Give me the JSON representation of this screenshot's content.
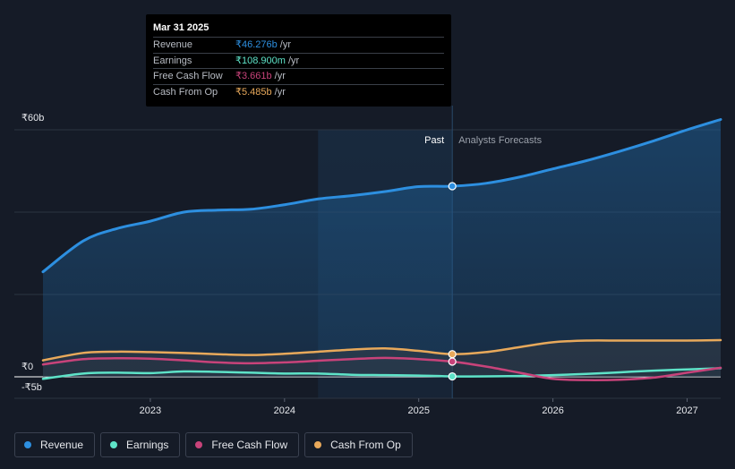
{
  "chart_data": {
    "type": "line",
    "y_unit_prefix": "₹",
    "y_unit_suffix": "b",
    "ylim": [
      -5,
      60
    ],
    "y_ticks": [
      {
        "value": 60,
        "label": "₹60b"
      },
      {
        "value": 0,
        "label": "₹0"
      },
      {
        "value": -5,
        "label": "-₹5b"
      }
    ],
    "x_range": [
      2022.2,
      2027.25
    ],
    "x_ticks": [
      {
        "value": 2023,
        "label": "2023"
      },
      {
        "value": 2024,
        "label": "2024"
      },
      {
        "value": 2025,
        "label": "2025"
      },
      {
        "value": 2026,
        "label": "2026"
      },
      {
        "value": 2027,
        "label": "2027"
      }
    ],
    "past_label": "Past",
    "forecast_label": "Analysts Forecasts",
    "divider_x": 2025.25,
    "highlight_start_x": 2024.25,
    "series": [
      {
        "name": "Revenue",
        "color": "#2d8fe0",
        "fill": true,
        "points": [
          [
            2022.2,
            25.5
          ],
          [
            2022.5,
            33
          ],
          [
            2022.75,
            36
          ],
          [
            2023,
            37.8
          ],
          [
            2023.25,
            40
          ],
          [
            2023.5,
            40.5
          ],
          [
            2023.75,
            40.7
          ],
          [
            2024,
            41.8
          ],
          [
            2024.25,
            43.2
          ],
          [
            2024.5,
            44
          ],
          [
            2024.75,
            45
          ],
          [
            2025,
            46.2
          ],
          [
            2025.25,
            46.3
          ],
          [
            2025.5,
            47
          ],
          [
            2025.75,
            48.5
          ],
          [
            2026,
            50.5
          ],
          [
            2026.25,
            52.5
          ],
          [
            2026.5,
            54.8
          ],
          [
            2026.75,
            57.3
          ],
          [
            2027,
            60
          ],
          [
            2027.25,
            62.5
          ]
        ]
      },
      {
        "name": "Earnings",
        "color": "#5ee3c8",
        "fill": false,
        "points": [
          [
            2022.2,
            -0.5
          ],
          [
            2022.5,
            0.8
          ],
          [
            2022.75,
            1
          ],
          [
            2023,
            0.9
          ],
          [
            2023.25,
            1.3
          ],
          [
            2023.5,
            1.2
          ],
          [
            2023.75,
            1
          ],
          [
            2024,
            0.8
          ],
          [
            2024.25,
            0.8
          ],
          [
            2024.5,
            0.5
          ],
          [
            2024.75,
            0.4
          ],
          [
            2025,
            0.3
          ],
          [
            2025.25,
            0.1
          ],
          [
            2025.5,
            0.1
          ],
          [
            2025.75,
            0.2
          ],
          [
            2026,
            0.4
          ],
          [
            2026.25,
            0.7
          ],
          [
            2026.5,
            1.1
          ],
          [
            2026.75,
            1.5
          ],
          [
            2027,
            1.8
          ],
          [
            2027.25,
            2.1
          ]
        ]
      },
      {
        "name": "Free Cash Flow",
        "color": "#c8437a",
        "fill": false,
        "points": [
          [
            2022.2,
            3
          ],
          [
            2022.5,
            4.3
          ],
          [
            2022.75,
            4.5
          ],
          [
            2023,
            4.4
          ],
          [
            2023.25,
            4
          ],
          [
            2023.5,
            3.5
          ],
          [
            2023.75,
            3.3
          ],
          [
            2024,
            3.5
          ],
          [
            2024.25,
            3.9
          ],
          [
            2024.5,
            4.3
          ],
          [
            2024.75,
            4.6
          ],
          [
            2025,
            4.3
          ],
          [
            2025.25,
            3.7
          ],
          [
            2025.5,
            2.5
          ],
          [
            2025.75,
            1
          ],
          [
            2026,
            -0.5
          ],
          [
            2026.25,
            -0.8
          ],
          [
            2026.5,
            -0.7
          ],
          [
            2026.75,
            -0.2
          ],
          [
            2027,
            1
          ],
          [
            2027.25,
            2.2
          ]
        ]
      },
      {
        "name": "Cash From Op",
        "color": "#e8a95b",
        "fill": false,
        "points": [
          [
            2022.2,
            4
          ],
          [
            2022.5,
            5.8
          ],
          [
            2022.75,
            6.1
          ],
          [
            2023,
            6
          ],
          [
            2023.25,
            5.8
          ],
          [
            2023.5,
            5.5
          ],
          [
            2023.75,
            5.3
          ],
          [
            2024,
            5.6
          ],
          [
            2024.25,
            6.1
          ],
          [
            2024.5,
            6.6
          ],
          [
            2024.75,
            6.9
          ],
          [
            2025,
            6.3
          ],
          [
            2025.25,
            5.5
          ],
          [
            2025.5,
            6
          ],
          [
            2025.75,
            7.2
          ],
          [
            2026,
            8.4
          ],
          [
            2026.25,
            8.8
          ],
          [
            2026.5,
            8.8
          ],
          [
            2026.75,
            8.8
          ],
          [
            2027,
            8.8
          ],
          [
            2027.25,
            8.9
          ]
        ]
      }
    ],
    "marker_x": 2025.25
  },
  "tooltip": {
    "date": "Mar 31 2025",
    "rows": [
      {
        "label": "Revenue",
        "value": "₹46.276b",
        "unit": "/yr",
        "color": "#2d8fe0"
      },
      {
        "label": "Earnings",
        "value": "₹108.900m",
        "unit": "/yr",
        "color": "#5ee3c8"
      },
      {
        "label": "Free Cash Flow",
        "value": "₹3.661b",
        "unit": "/yr",
        "color": "#c8437a"
      },
      {
        "label": "Cash From Op",
        "value": "₹5.485b",
        "unit": "/yr",
        "color": "#e8a95b"
      }
    ]
  },
  "legend": [
    {
      "label": "Revenue",
      "color": "#2d8fe0"
    },
    {
      "label": "Earnings",
      "color": "#5ee3c8"
    },
    {
      "label": "Free Cash Flow",
      "color": "#c8437a"
    },
    {
      "label": "Cash From Op",
      "color": "#e8a95b"
    }
  ]
}
